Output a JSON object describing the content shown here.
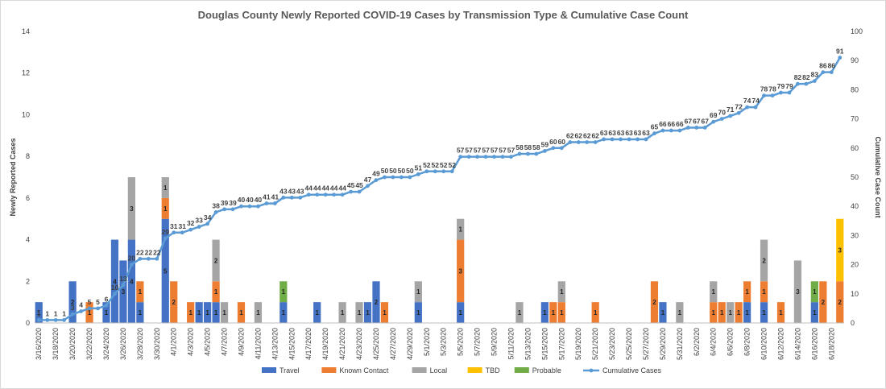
{
  "chart_data": {
    "type": "bar",
    "stacked": true,
    "title": "Douglas County Newly Reported COVID-19 Cases by Transmission Type & Cumulative Case Count",
    "ylabel": "Newly Reported Cases",
    "y2label": "Cumulative Case Count",
    "ylim": [
      0,
      14
    ],
    "y2lim": [
      0,
      100
    ],
    "yticks": [
      0,
      2,
      4,
      6,
      8,
      10,
      12,
      14
    ],
    "y2ticks": [
      0,
      10,
      20,
      30,
      40,
      50,
      60,
      70,
      80,
      90,
      100
    ],
    "legend_position": "bottom",
    "categories": [
      "3/16/2020",
      "3/17/2020",
      "3/18/2020",
      "3/19/2020",
      "3/20/2020",
      "3/21/2020",
      "3/22/2020",
      "3/23/2020",
      "3/24/2020",
      "3/25/2020",
      "3/26/2020",
      "3/27/2020",
      "3/28/2020",
      "3/29/2020",
      "3/30/2020",
      "3/31/2020",
      "4/1/2020",
      "4/2/2020",
      "4/3/2020",
      "4/4/2020",
      "4/5/2020",
      "4/6/2020",
      "4/7/2020",
      "4/8/2020",
      "4/9/2020",
      "4/10/2020",
      "4/11/2020",
      "4/12/2020",
      "4/13/2020",
      "4/14/2020",
      "4/15/2020",
      "4/16/2020",
      "4/17/2020",
      "4/18/2020",
      "4/19/2020",
      "4/20/2020",
      "4/21/2020",
      "4/22/2020",
      "4/23/2020",
      "4/24/2020",
      "4/25/2020",
      "4/26/2020",
      "4/27/2020",
      "4/28/2020",
      "4/29/2020",
      "4/30/2020",
      "5/1/2020",
      "5/2/2020",
      "5/3/2020",
      "5/4/2020",
      "5/5/2020",
      "5/6/2020",
      "5/7/2020",
      "5/8/2020",
      "5/9/2020",
      "5/10/2020",
      "5/11/2020",
      "5/12/2020",
      "5/13/2020",
      "5/14/2020",
      "5/15/2020",
      "5/16/2020",
      "5/17/2020",
      "5/18/2020",
      "5/19/2020",
      "5/20/2020",
      "5/21/2020",
      "5/22/2020",
      "5/23/2020",
      "5/24/2020",
      "5/25/2020",
      "5/26/2020",
      "5/27/2020",
      "5/28/2020",
      "5/29/2020",
      "5/30/2020",
      "5/31/2020",
      "6/1/2020",
      "6/2/2020",
      "6/3/2020",
      "6/4/2020",
      "6/5/2020",
      "6/6/2020",
      "6/7/2020",
      "6/8/2020",
      "6/9/2020",
      "6/10/2020",
      "6/11/2020",
      "6/12/2020",
      "6/13/2020",
      "6/14/2020",
      "6/15/2020",
      "6/16/2020",
      "6/17/2020",
      "6/18/2020",
      "6/19/2020"
    ],
    "series": [
      {
        "name": "Travel",
        "color": "#4472C4",
        "values": [
          1,
          0,
          0,
          0,
          2,
          0,
          0,
          0,
          1,
          4,
          3,
          4,
          1,
          0,
          0,
          5,
          0,
          0,
          0,
          1,
          1,
          1,
          0,
          0,
          0,
          0,
          0,
          0,
          0,
          1,
          0,
          0,
          0,
          1,
          0,
          0,
          0,
          0,
          0,
          1,
          2,
          0,
          0,
          0,
          0,
          1,
          0,
          0,
          0,
          0,
          1,
          0,
          0,
          0,
          0,
          0,
          0,
          0,
          0,
          0,
          1,
          0,
          0,
          0,
          0,
          0,
          0,
          0,
          0,
          0,
          0,
          0,
          0,
          0,
          1,
          0,
          0,
          0,
          0,
          0,
          0,
          0,
          0,
          0,
          1,
          0,
          1,
          0,
          0,
          0,
          0,
          0,
          1,
          0,
          0,
          0
        ]
      },
      {
        "name": "Known Contact",
        "color": "#ED7D31",
        "values": [
          0,
          0,
          0,
          0,
          0,
          0,
          1,
          0,
          0,
          0,
          0,
          0,
          1,
          0,
          0,
          1,
          2,
          0,
          1,
          0,
          0,
          1,
          0,
          0,
          1,
          0,
          0,
          0,
          0,
          0,
          0,
          0,
          0,
          0,
          0,
          0,
          0,
          0,
          0,
          0,
          0,
          1,
          0,
          0,
          0,
          0,
          0,
          0,
          0,
          0,
          3,
          0,
          0,
          0,
          0,
          0,
          0,
          0,
          0,
          0,
          0,
          1,
          1,
          0,
          0,
          0,
          1,
          0,
          0,
          0,
          0,
          0,
          0,
          2,
          0,
          0,
          0,
          0,
          0,
          0,
          1,
          1,
          0,
          1,
          1,
          0,
          1,
          0,
          1,
          0,
          0,
          0,
          0,
          2,
          0,
          2
        ]
      },
      {
        "name": "Local",
        "color": "#A5A5A5",
        "values": [
          0,
          0,
          0,
          0,
          0,
          0,
          0,
          0,
          0,
          0,
          0,
          3,
          0,
          0,
          0,
          1,
          0,
          0,
          0,
          0,
          0,
          2,
          1,
          0,
          0,
          0,
          1,
          0,
          0,
          0,
          0,
          0,
          0,
          0,
          0,
          0,
          1,
          0,
          1,
          0,
          0,
          0,
          0,
          0,
          0,
          1,
          0,
          0,
          0,
          0,
          1,
          0,
          0,
          0,
          0,
          0,
          0,
          1,
          0,
          0,
          0,
          0,
          1,
          0,
          0,
          0,
          0,
          0,
          0,
          0,
          0,
          0,
          0,
          0,
          0,
          0,
          1,
          0,
          0,
          0,
          1,
          0,
          1,
          0,
          0,
          0,
          2,
          0,
          0,
          0,
          3,
          0,
          0,
          0,
          0,
          0
        ]
      },
      {
        "name": "TBD",
        "color": "#FFC000",
        "values": [
          0,
          0,
          0,
          0,
          0,
          0,
          0,
          0,
          0,
          0,
          0,
          0,
          0,
          0,
          0,
          0,
          0,
          0,
          0,
          0,
          0,
          0,
          0,
          0,
          0,
          0,
          0,
          0,
          0,
          0,
          0,
          0,
          0,
          0,
          0,
          0,
          0,
          0,
          0,
          0,
          0,
          0,
          0,
          0,
          0,
          0,
          0,
          0,
          0,
          0,
          0,
          0,
          0,
          0,
          0,
          0,
          0,
          0,
          0,
          0,
          0,
          0,
          0,
          0,
          0,
          0,
          0,
          0,
          0,
          0,
          0,
          0,
          0,
          0,
          0,
          0,
          0,
          0,
          0,
          0,
          0,
          0,
          0,
          0,
          0,
          0,
          0,
          0,
          0,
          0,
          0,
          0,
          0,
          0,
          0,
          3
        ]
      },
      {
        "name": "Probable",
        "color": "#70AD47",
        "values": [
          0,
          0,
          0,
          0,
          0,
          0,
          0,
          0,
          0,
          0,
          0,
          0,
          0,
          0,
          0,
          0,
          0,
          0,
          0,
          0,
          0,
          0,
          0,
          0,
          0,
          0,
          0,
          0,
          0,
          1,
          0,
          0,
          0,
          0,
          0,
          0,
          0,
          0,
          0,
          0,
          0,
          0,
          0,
          0,
          0,
          0,
          0,
          0,
          0,
          0,
          0,
          0,
          0,
          0,
          0,
          0,
          0,
          0,
          0,
          0,
          0,
          0,
          0,
          0,
          0,
          0,
          0,
          0,
          0,
          0,
          0,
          0,
          0,
          0,
          0,
          0,
          0,
          0,
          0,
          0,
          0,
          0,
          0,
          0,
          0,
          0,
          0,
          0,
          0,
          0,
          0,
          0,
          1,
          0,
          0,
          0
        ]
      }
    ],
    "cumulative": {
      "name": "Cumulative Cases",
      "color": "#5B9BD5",
      "values": [
        1,
        1,
        1,
        1,
        3,
        4,
        5,
        5,
        6,
        10,
        13,
        20,
        22,
        22,
        22,
        29,
        31,
        31,
        32,
        33,
        34,
        38,
        39,
        39,
        40,
        40,
        40,
        41,
        41,
        43,
        43,
        43,
        44,
        44,
        44,
        44,
        44,
        45,
        45,
        47,
        49,
        50,
        50,
        50,
        50,
        51,
        52,
        52,
        52,
        52,
        57,
        57,
        57,
        57,
        57,
        57,
        57,
        58,
        58,
        58,
        59,
        60,
        60,
        62,
        62,
        62,
        62,
        63,
        63,
        63,
        63,
        63,
        63,
        65,
        66,
        66,
        66,
        67,
        67,
        67,
        69,
        70,
        71,
        72,
        74,
        74,
        78,
        78,
        79,
        79,
        82,
        82,
        83,
        86,
        86,
        91
      ]
    },
    "legend": [
      "Travel",
      "Known Contact",
      "Local",
      "TBD",
      "Probable",
      "Cumulative Cases"
    ]
  }
}
